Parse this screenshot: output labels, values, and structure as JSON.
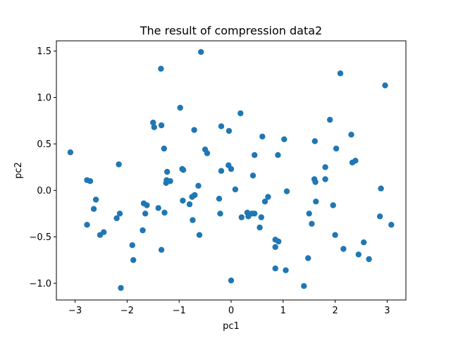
{
  "chart_data": {
    "type": "scatter",
    "title": "The result of compression data2",
    "xlabel": "pc1",
    "ylabel": "pc2",
    "xlim": [
      -3.36,
      3.36
    ],
    "ylim": [
      -1.18,
      1.61
    ],
    "xticks": [
      -3,
      -2,
      -1,
      0,
      1,
      2,
      3
    ],
    "yticks": [
      -1.0,
      -0.5,
      0.0,
      0.5,
      1.0,
      1.5
    ],
    "xtick_labels": [
      "−3",
      "−2",
      "−1",
      "0",
      "1",
      "2",
      "3"
    ],
    "ytick_labels": [
      "−1.0",
      "−0.5",
      "0.0",
      "0.5",
      "1.0",
      "1.5"
    ],
    "grid": false,
    "marker_color": "#1f77b4",
    "series": [
      {
        "points": [
          [
            -3.09,
            0.41
          ],
          [
            -2.77,
            0.11
          ],
          [
            -2.71,
            0.1
          ],
          [
            -2.77,
            -0.37
          ],
          [
            -2.64,
            -0.2
          ],
          [
            -2.6,
            -0.1
          ],
          [
            -2.52,
            -0.48
          ],
          [
            -2.45,
            -0.45
          ],
          [
            -2.2,
            -0.3
          ],
          [
            -2.16,
            0.28
          ],
          [
            -2.14,
            -0.25
          ],
          [
            -2.12,
            -1.05
          ],
          [
            -1.9,
            -0.59
          ],
          [
            -1.88,
            -0.75
          ],
          [
            -1.7,
            -0.43
          ],
          [
            -1.68,
            -0.14
          ],
          [
            -1.65,
            -0.25
          ],
          [
            -1.62,
            -0.16
          ],
          [
            -1.5,
            0.73
          ],
          [
            -1.48,
            0.68
          ],
          [
            -1.4,
            -0.19
          ],
          [
            -1.35,
            1.31
          ],
          [
            -1.34,
            0.7
          ],
          [
            -1.34,
            -0.64
          ],
          [
            -1.29,
            0.45
          ],
          [
            -1.28,
            -0.24
          ],
          [
            -1.25,
            0.08
          ],
          [
            -1.24,
            0.11
          ],
          [
            -1.23,
            0.2
          ],
          [
            -1.17,
            0.1
          ],
          [
            -0.98,
            0.89
          ],
          [
            -0.94,
            0.23
          ],
          [
            -0.93,
            -0.11
          ],
          [
            -0.92,
            0.22
          ],
          [
            -0.8,
            -0.15
          ],
          [
            -0.75,
            -0.07
          ],
          [
            -0.74,
            -0.32
          ],
          [
            -0.71,
            0.65
          ],
          [
            -0.7,
            -0.05
          ],
          [
            -0.63,
            0.05
          ],
          [
            -0.61,
            -0.48
          ],
          [
            -0.58,
            1.49
          ],
          [
            -0.5,
            0.44
          ],
          [
            -0.46,
            0.4
          ],
          [
            -0.23,
            -0.09
          ],
          [
            -0.21,
            -0.25
          ],
          [
            -0.19,
            0.69
          ],
          [
            -0.19,
            0.21
          ],
          [
            -0.05,
            0.27
          ],
          [
            -0.04,
            0.64
          ],
          [
            0.0,
            0.23
          ],
          [
            0.0,
            -0.97
          ],
          [
            0.08,
            0.01
          ],
          [
            0.18,
            0.83
          ],
          [
            0.2,
            -0.29
          ],
          [
            0.31,
            -0.24
          ],
          [
            0.33,
            -0.28
          ],
          [
            0.4,
            -0.25
          ],
          [
            0.42,
            0.16
          ],
          [
            0.45,
            0.38
          ],
          [
            0.45,
            -0.25
          ],
          [
            0.55,
            -0.4
          ],
          [
            0.58,
            -0.29
          ],
          [
            0.6,
            0.58
          ],
          [
            0.65,
            -0.12
          ],
          [
            0.71,
            -0.07
          ],
          [
            0.85,
            -0.53
          ],
          [
            0.85,
            -0.61
          ],
          [
            0.85,
            -0.84
          ],
          [
            0.9,
            0.38
          ],
          [
            0.91,
            -0.55
          ],
          [
            1.02,
            0.55
          ],
          [
            1.05,
            -0.86
          ],
          [
            1.07,
            -0.01
          ],
          [
            1.4,
            -1.03
          ],
          [
            1.48,
            -0.73
          ],
          [
            1.5,
            -0.25
          ],
          [
            1.55,
            -0.36
          ],
          [
            1.6,
            0.12
          ],
          [
            1.61,
            0.53
          ],
          [
            1.62,
            0.09
          ],
          [
            1.63,
            -0.12
          ],
          [
            1.81,
            0.12
          ],
          [
            1.81,
            0.25
          ],
          [
            1.9,
            0.76
          ],
          [
            1.96,
            -0.16
          ],
          [
            2.0,
            -0.48
          ],
          [
            2.02,
            0.45
          ],
          [
            2.1,
            1.26
          ],
          [
            2.16,
            -0.63
          ],
          [
            2.31,
            0.6
          ],
          [
            2.33,
            0.3
          ],
          [
            2.39,
            0.32
          ],
          [
            2.45,
            -0.69
          ],
          [
            2.55,
            -0.56
          ],
          [
            2.65,
            -0.74
          ],
          [
            2.86,
            -0.28
          ],
          [
            2.88,
            0.02
          ],
          [
            2.96,
            1.13
          ],
          [
            3.08,
            -0.37
          ]
        ]
      }
    ]
  }
}
